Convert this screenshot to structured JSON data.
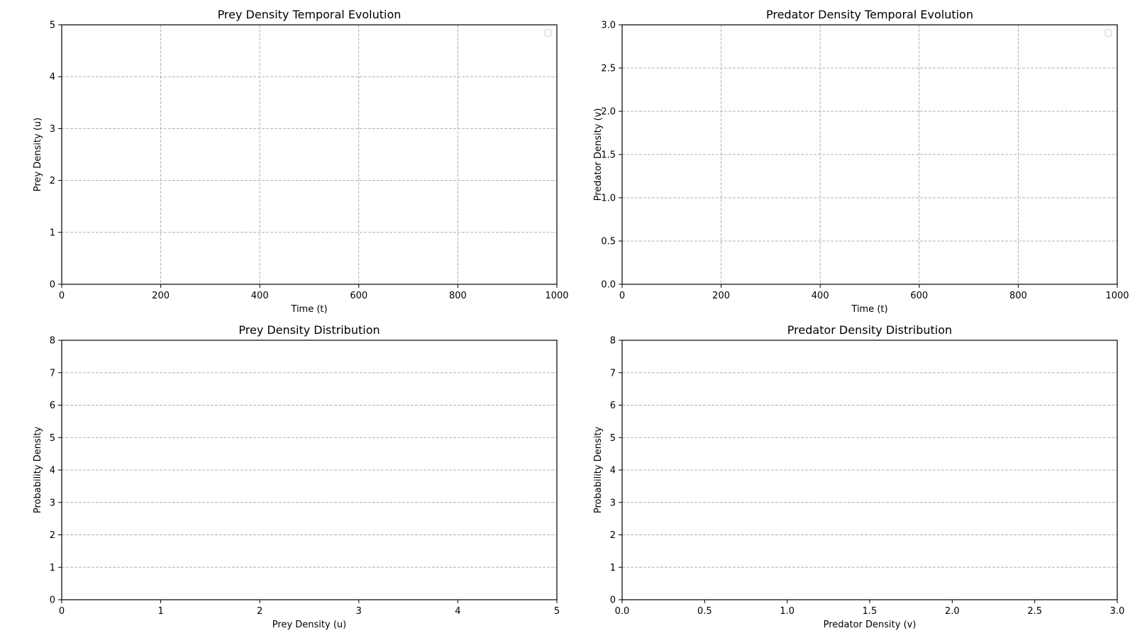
{
  "figure": {
    "background": "#ffffff",
    "grid_color": "#b0b0b0",
    "axis_color": "#000000"
  },
  "chart_data": [
    {
      "type": "line",
      "title": "Prey Density Temporal Evolution",
      "xlabel": "Time (t)",
      "ylabel": "Prey Density (u)",
      "xlim": [
        0,
        1000
      ],
      "ylim": [
        0,
        5
      ],
      "xticks": [
        "0",
        "200",
        "400",
        "600",
        "800",
        "1000"
      ],
      "yticks": [
        "0",
        "1",
        "2",
        "3",
        "4",
        "5"
      ],
      "grid": "both, dashed",
      "legend": "top-right (empty)",
      "series": []
    },
    {
      "type": "line",
      "title": "Predator Density Temporal Evolution",
      "xlabel": "Time (t)",
      "ylabel": "Predator Density (v)",
      "xlim": [
        0,
        1000
      ],
      "ylim": [
        0,
        3
      ],
      "xticks": [
        "0",
        "200",
        "400",
        "600",
        "800",
        "1000"
      ],
      "yticks": [
        "0.0",
        "0.5",
        "1.0",
        "1.5",
        "2.0",
        "2.5",
        "3.0"
      ],
      "grid": "both, dashed",
      "legend": "top-right (empty)",
      "series": []
    },
    {
      "type": "bar",
      "title": "Prey Density Distribution",
      "xlabel": "Prey Density (u)",
      "ylabel": "Probability Density",
      "xlim": [
        0,
        5
      ],
      "ylim": [
        0,
        8
      ],
      "xticks": [
        "0",
        "1",
        "2",
        "3",
        "4",
        "5"
      ],
      "yticks": [
        "0",
        "1",
        "2",
        "3",
        "4",
        "5",
        "6",
        "7",
        "8"
      ],
      "grid": "y, dashed",
      "series": []
    },
    {
      "type": "bar",
      "title": "Predator Density Distribution",
      "xlabel": "Predator Density (v)",
      "ylabel": "Probability Density",
      "xlim": [
        0,
        3
      ],
      "ylim": [
        0,
        8
      ],
      "xticks": [
        "0.0",
        "0.5",
        "1.0",
        "1.5",
        "2.0",
        "2.5",
        "3.0"
      ],
      "yticks": [
        "0",
        "1",
        "2",
        "3",
        "4",
        "5",
        "6",
        "7",
        "8"
      ],
      "grid": "y, dashed",
      "series": []
    }
  ]
}
